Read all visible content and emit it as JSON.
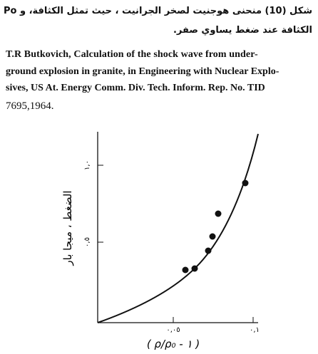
{
  "caption": {
    "lines": [
      "شكل (10) منحنى هوجنيت لصخر الجرانيت ، حيث تمثل الكثافة، و Po",
      "الكثافة عند ضغط يساوي صفر."
    ]
  },
  "reference": {
    "lines": [
      "T.R Butkovich, Calculation of the shock wave from under-",
      "ground explosion in granite, in Engineering with Nuclear Explo-",
      "sives, US At. Energy Comm. Div. Tech. Inform. Rep. No. TID",
      "7695,1964."
    ]
  },
  "figure": {
    "y_label": "الضغط ، ميجا بار",
    "y_ticks": [
      "١,٠",
      "٠,٥"
    ],
    "x_ticks": [
      "٠,٠٥",
      "٠,١"
    ],
    "x_label": "( ρ/ρ₀ - ١ )"
  }
}
